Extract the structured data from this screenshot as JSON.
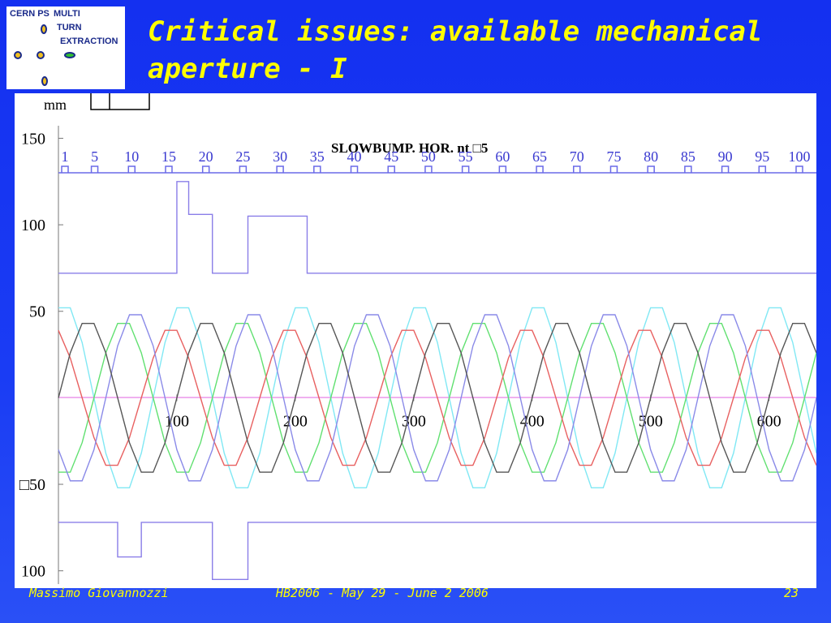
{
  "slide": {
    "title": "Critical issues: available mechanical aperture - I",
    "logo": {
      "line1": "CERN PS",
      "line2": "MULTI",
      "line3": "TURN",
      "line4": "EXTRACTION"
    },
    "footer": {
      "author": "Massimo Giovannozzi",
      "event": "HB2006 - May 29 - June 2 2006",
      "page": "23"
    }
  },
  "chart_data": {
    "type": "line",
    "title": "SLOWBUMP. HOR.  nt □5",
    "unit_label": "mm",
    "element_labels": [
      1,
      5,
      10,
      15,
      20,
      25,
      30,
      35,
      40,
      45,
      50,
      55,
      60,
      65,
      70,
      75,
      80,
      85,
      90,
      95,
      100
    ],
    "x": [
      0,
      10,
      20,
      30,
      40,
      50,
      60,
      70,
      80,
      90,
      100,
      110,
      120,
      130,
      140,
      150,
      160,
      170,
      180,
      190,
      200,
      210,
      220,
      230,
      240,
      250,
      260,
      270,
      280,
      290,
      300,
      310,
      320,
      330,
      340,
      350,
      360,
      370,
      380,
      390,
      400,
      410,
      420,
      430,
      440,
      450,
      460,
      470,
      480,
      490,
      500,
      510,
      520,
      530,
      540,
      550,
      560,
      570,
      580,
      590,
      600,
      610,
      620,
      630,
      640
    ],
    "xlim": [
      0,
      640
    ],
    "xticks": [
      100,
      200,
      300,
      400,
      500,
      600
    ],
    "ylim": [
      -110,
      176
    ],
    "yticks": [
      150,
      100,
      50,
      {
        "value": -50,
        "label": "□50"
      },
      {
        "value": -100,
        "label": "100"
      }
    ],
    "series": [
      {
        "color": "#8a7ee8",
        "step": true,
        "values": [
          72,
          72,
          72,
          72,
          72,
          72,
          72,
          72,
          72,
          72,
          125,
          106,
          106,
          72,
          72,
          72,
          105,
          105,
          105,
          105,
          105,
          72,
          72,
          72,
          72,
          72,
          72,
          72,
          72,
          72,
          72,
          72,
          72,
          72,
          72,
          72,
          72,
          72,
          72,
          72,
          72,
          72,
          72,
          72,
          72,
          72,
          72,
          72,
          72,
          72,
          72,
          72,
          72,
          72,
          72,
          72,
          72,
          72,
          72,
          72,
          72,
          72,
          72,
          72,
          72
        ]
      },
      {
        "color": "#8a7ee8",
        "step": true,
        "values": [
          -72,
          -72,
          -72,
          -72,
          -72,
          -92,
          -92,
          -72,
          -72,
          -72,
          -72,
          -72,
          -72,
          -105,
          -105,
          -105,
          -72,
          -72,
          -72,
          -72,
          -72,
          -72,
          -72,
          -72,
          -72,
          -72,
          -72,
          -72,
          -72,
          -72,
          -72,
          -72,
          -72,
          -72,
          -72,
          -72,
          -72,
          -72,
          -72,
          -72,
          -72,
          -72,
          -72,
          -72,
          -72,
          -72,
          -72,
          -72,
          -72,
          -72,
          -72,
          -72,
          -72,
          -72,
          -72,
          -72,
          -72,
          -72,
          -72,
          -72,
          -72,
          -72,
          -72,
          -72,
          -72
        ]
      },
      {
        "color": "#80e8f4",
        "values": [
          52,
          52,
          32,
          0,
          -32,
          -52,
          -52,
          -32,
          0,
          32,
          52,
          52,
          32,
          0,
          -32,
          -52,
          -52,
          -32,
          0,
          32,
          52,
          52,
          32,
          0,
          -32,
          -52,
          -52,
          -32,
          0,
          32,
          52,
          52,
          32,
          0,
          -32,
          -52,
          -52,
          -32,
          0,
          32,
          52,
          52,
          32,
          0,
          -32,
          -52,
          -52,
          -32,
          0,
          32,
          52,
          52,
          32,
          0,
          -32,
          -52,
          -52,
          -32,
          0,
          32,
          52,
          52,
          32,
          0,
          -32
        ]
      },
      {
        "color": "#60e070",
        "values": [
          -43,
          -43,
          -26,
          0,
          26,
          43,
          43,
          26,
          0,
          -26,
          -43,
          -43,
          -26,
          0,
          26,
          43,
          43,
          26,
          0,
          -26,
          -43,
          -43,
          -26,
          0,
          26,
          43,
          43,
          26,
          0,
          -26,
          -43,
          -43,
          -26,
          0,
          26,
          43,
          43,
          26,
          0,
          -26,
          -43,
          -43,
          -26,
          0,
          26,
          43,
          43,
          26,
          0,
          -26,
          -43,
          -43,
          -26,
          0,
          26,
          43,
          43,
          26,
          0,
          -26,
          -43,
          -43,
          -26,
          0,
          26
        ]
      },
      {
        "color": "#e86060",
        "values": [
          39,
          23,
          0,
          -23,
          -39,
          -39,
          -23,
          0,
          23,
          39,
          39,
          23,
          0,
          -23,
          -39,
          -39,
          -23,
          0,
          23,
          39,
          39,
          23,
          0,
          -23,
          -39,
          -39,
          -23,
          0,
          23,
          39,
          39,
          23,
          0,
          -23,
          -39,
          -39,
          -23,
          0,
          23,
          39,
          39,
          23,
          0,
          -23,
          -39,
          -39,
          -23,
          0,
          23,
          39,
          39,
          23,
          0,
          -23,
          -39,
          -39,
          -23,
          0,
          23,
          39,
          39,
          23,
          0,
          -23,
          -39
        ]
      },
      {
        "color": "#8a8ae8",
        "values": [
          -30,
          -48,
          -48,
          -30,
          0,
          30,
          48,
          48,
          30,
          0,
          -30,
          -48,
          -48,
          -30,
          0,
          30,
          48,
          48,
          30,
          0,
          -30,
          -48,
          -48,
          -30,
          0,
          30,
          48,
          48,
          30,
          0,
          -30,
          -48,
          -48,
          -30,
          0,
          30,
          48,
          48,
          30,
          0,
          -30,
          -48,
          -48,
          -30,
          0,
          30,
          48,
          48,
          30,
          0,
          -30,
          -48,
          -48,
          -30,
          0,
          30,
          48,
          48,
          30,
          0,
          -30,
          -48,
          -48,
          -30,
          0
        ]
      },
      {
        "color": "#555555",
        "values": [
          0,
          26,
          43,
          43,
          26,
          0,
          -26,
          -43,
          -43,
          -26,
          0,
          26,
          43,
          43,
          26,
          0,
          -26,
          -43,
          -43,
          -26,
          0,
          26,
          43,
          43,
          26,
          0,
          -26,
          -43,
          -43,
          -26,
          0,
          26,
          43,
          43,
          26,
          0,
          -26,
          -43,
          -43,
          -26,
          0,
          26,
          43,
          43,
          26,
          0,
          -26,
          -43,
          -43,
          -26,
          0,
          26,
          43,
          43,
          26,
          0,
          -26,
          -43,
          -43,
          -26,
          0,
          26,
          43,
          43,
          26
        ]
      }
    ]
  }
}
